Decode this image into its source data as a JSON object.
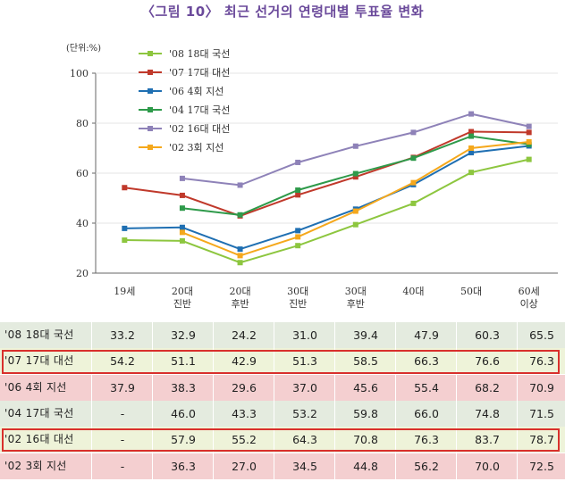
{
  "title": "〈그림 10〉 최근 선거의 연령대별 투표율 변화",
  "chart_data": {
    "type": "line",
    "unit_label": "(단위:%)",
    "ylim": [
      20,
      100
    ],
    "yticks": [
      20,
      40,
      60,
      80,
      100
    ],
    "categories": [
      "19세",
      "20대\n진반",
      "20대\n후반",
      "30대\n진반",
      "30대\n후반",
      "40대",
      "50대",
      "60세\n이상"
    ],
    "legend_position": "top-left",
    "series": [
      {
        "name": "'08 18대 국선",
        "color": "#8dc63f",
        "values": [
          33.2,
          32.9,
          24.2,
          31.0,
          39.4,
          47.9,
          60.3,
          65.5
        ],
        "labels": [
          "33.2",
          "32.9",
          "24.2",
          "31.0",
          "39.4",
          "47.9",
          "60.3",
          "65.5"
        ]
      },
      {
        "name": "'07 17대 대선",
        "color": "#c0392b",
        "values": [
          54.2,
          51.1,
          42.9,
          51.3,
          58.5,
          66.3,
          76.6,
          76.3
        ],
        "labels": [
          "54.2",
          "51.1",
          "42.9",
          "51.3",
          "58.5",
          "66.3",
          "76.6",
          "76.3"
        ]
      },
      {
        "name": "'06  4회 지선",
        "color": "#1f6fb2",
        "values": [
          37.9,
          38.3,
          29.6,
          37.0,
          45.6,
          55.4,
          68.2,
          70.9
        ],
        "labels": [
          "37.9",
          "38.3",
          "29.6",
          "37.0",
          "45.6",
          "55.4",
          "68.2",
          "70.9"
        ]
      },
      {
        "name": "'04 17대 국선",
        "color": "#2e9a4a",
        "values": [
          null,
          46.0,
          43.3,
          53.2,
          59.8,
          66.0,
          74.8,
          71.5
        ],
        "labels": [
          "-",
          "46.0",
          "43.3",
          "53.2",
          "59.8",
          "66.0",
          "74.8",
          "71.5"
        ]
      },
      {
        "name": "'02 16대 대선",
        "color": "#8e82b8",
        "values": [
          null,
          57.9,
          55.2,
          64.3,
          70.8,
          76.3,
          83.7,
          78.7
        ],
        "labels": [
          "-",
          "57.9",
          "55.2",
          "64.3",
          "70.8",
          "76.3",
          "83.7",
          "78.7"
        ]
      },
      {
        "name": "'02  3회 지선",
        "color": "#f5a81c",
        "values": [
          null,
          36.3,
          27.0,
          34.5,
          44.8,
          56.2,
          70.0,
          72.5
        ],
        "labels": [
          "-",
          "36.3",
          "27.0",
          "34.5",
          "44.8",
          "56.2",
          "70.0",
          "72.5"
        ]
      }
    ],
    "row_colors": [
      "#e4ebdf",
      "#eef3d9",
      "#f4cfd0",
      "#e4ebdf",
      "#eef3d9",
      "#f4cfd0"
    ],
    "highlighted_rows": [
      1,
      4
    ],
    "highlight_color": "#d9302c"
  }
}
